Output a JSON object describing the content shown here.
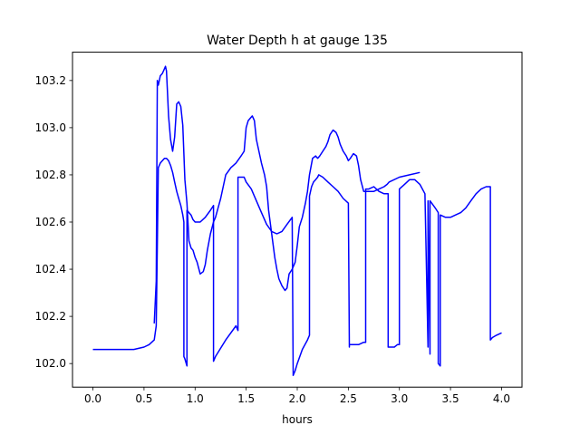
{
  "chart_data": {
    "type": "line",
    "title": "Water Depth h at gauge 135",
    "xlabel": "hours",
    "ylabel": "",
    "xlim": [
      -0.2,
      4.2
    ],
    "ylim": [
      101.9,
      103.32
    ],
    "xticks": [
      0.0,
      0.5,
      1.0,
      1.5,
      2.0,
      2.5,
      3.0,
      3.5,
      4.0
    ],
    "xtick_labels": [
      "0.0",
      "0.5",
      "1.0",
      "1.5",
      "2.0",
      "2.5",
      "3.0",
      "3.5",
      "4.0"
    ],
    "yticks": [
      102.0,
      102.2,
      102.4,
      102.6,
      102.8,
      103.0,
      103.2
    ],
    "ytick_labels": [
      "102.0",
      "102.2",
      "102.4",
      "102.6",
      "102.8",
      "103.0",
      "103.2"
    ],
    "grid": false,
    "legend": "none",
    "series": [
      {
        "color": "#0000ff",
        "x": [
          0.0,
          0.2,
          0.4,
          0.5,
          0.55,
          0.6,
          0.62,
          0.63,
          0.64,
          0.65,
          0.66,
          0.68,
          0.7,
          0.72,
          0.74,
          0.76,
          0.78,
          0.8,
          0.82,
          0.84,
          0.86,
          0.88,
          0.89,
          0.89,
          0.9,
          0.92,
          0.92,
          0.94,
          0.96,
          0.98,
          1.0,
          1.02,
          1.05,
          1.1,
          1.15,
          1.18,
          1.18,
          1.2,
          1.3,
          1.4,
          1.42,
          1.42,
          1.45,
          1.48,
          1.5,
          1.55,
          1.6,
          1.65,
          1.7,
          1.75,
          1.8,
          1.85,
          1.9,
          1.95,
          1.96,
          1.96,
          1.98,
          2.0,
          2.05,
          2.1,
          2.12,
          2.12,
          2.14,
          2.16,
          2.18,
          2.2,
          2.21,
          2.21,
          2.25,
          2.3,
          2.35,
          2.4,
          2.45,
          2.5,
          2.51,
          2.51,
          2.55,
          2.6,
          2.65,
          2.67,
          2.67,
          2.7,
          2.75,
          2.8,
          2.85,
          2.88,
          2.89,
          2.89,
          2.92,
          2.95,
          2.98,
          3.0,
          3.0,
          3.05,
          3.1,
          3.15,
          3.2,
          3.25,
          3.28,
          3.28,
          3.3,
          3.3,
          3.35,
          3.38,
          3.38,
          3.4,
          3.4,
          3.45,
          3.5,
          3.55,
          3.6,
          3.65,
          3.7,
          3.75,
          3.8,
          3.85,
          3.89,
          3.89,
          3.91,
          3.95,
          4.0
        ],
        "y": [
          102.06,
          102.06,
          102.06,
          102.07,
          102.08,
          102.1,
          102.16,
          102.5,
          102.83,
          102.84,
          102.85,
          102.86,
          102.87,
          102.87,
          102.86,
          102.84,
          102.81,
          102.77,
          102.73,
          102.7,
          102.67,
          102.63,
          102.6,
          102.03,
          102.02,
          101.99,
          102.65,
          102.64,
          102.63,
          102.61,
          102.6,
          102.6,
          102.6,
          102.62,
          102.65,
          102.67,
          102.01,
          102.03,
          102.1,
          102.16,
          102.14,
          102.79,
          102.79,
          102.79,
          102.77,
          102.74,
          102.69,
          102.64,
          102.59,
          102.56,
          102.55,
          102.56,
          102.59,
          102.62,
          101.96,
          101.95,
          101.97,
          102.0,
          102.06,
          102.1,
          102.12,
          102.71,
          102.75,
          102.77,
          102.78,
          102.79,
          102.8,
          102.8,
          102.79,
          102.77,
          102.75,
          102.73,
          102.7,
          102.68,
          102.07,
          102.08,
          102.08,
          102.08,
          102.09,
          102.09,
          102.74,
          102.74,
          102.75,
          102.73,
          102.72,
          102.72,
          102.72,
          102.07,
          102.07,
          102.07,
          102.08,
          102.08,
          102.74,
          102.76,
          102.78,
          102.78,
          102.76,
          102.72,
          102.07,
          102.69,
          102.04,
          102.69,
          102.66,
          102.64,
          102.0,
          101.99,
          102.63,
          102.62,
          102.62,
          102.63,
          102.64,
          102.66,
          102.69,
          102.72,
          102.74,
          102.75,
          102.75,
          102.1,
          102.11,
          102.12,
          102.13
        ]
      },
      {
        "color": "#0000ff",
        "x": [
          0.6,
          0.62,
          0.63,
          0.64,
          0.66,
          0.68,
          0.7,
          0.71,
          0.72,
          0.73,
          0.74,
          0.76,
          0.78,
          0.8,
          0.82,
          0.84,
          0.86,
          0.88,
          0.9,
          0.92,
          0.94,
          0.96,
          0.98,
          1.0,
          1.02,
          1.05,
          1.08,
          1.1,
          1.12,
          1.15,
          1.18,
          1.2,
          1.25,
          1.3,
          1.35,
          1.4,
          1.45,
          1.48,
          1.5,
          1.52,
          1.54,
          1.56,
          1.58,
          1.6,
          1.65,
          1.68,
          1.7,
          1.72,
          1.75,
          1.78,
          1.8,
          1.82,
          1.85,
          1.88,
          1.9,
          1.92,
          1.95,
          1.98,
          2.0,
          2.02,
          2.05,
          2.08,
          2.1,
          2.12,
          2.15,
          2.18,
          2.2,
          2.22,
          2.25,
          2.28,
          2.3,
          2.32,
          2.35,
          2.38,
          2.4,
          2.42,
          2.45,
          2.48,
          2.5,
          2.52,
          2.55,
          2.58,
          2.6,
          2.62,
          2.65,
          2.68,
          2.7,
          2.75,
          2.8,
          2.85,
          2.88,
          2.9,
          3.0,
          3.1,
          3.2
        ],
        "y": [
          102.17,
          102.35,
          103.2,
          103.18,
          103.22,
          103.23,
          103.25,
          103.26,
          103.24,
          103.15,
          103.05,
          102.95,
          102.9,
          102.96,
          103.1,
          103.11,
          103.09,
          103.01,
          102.78,
          102.68,
          102.52,
          102.49,
          102.48,
          102.45,
          102.43,
          102.38,
          102.39,
          102.42,
          102.48,
          102.55,
          102.6,
          102.62,
          102.7,
          102.8,
          102.83,
          102.85,
          102.88,
          102.9,
          103.0,
          103.03,
          103.04,
          103.05,
          103.03,
          102.95,
          102.85,
          102.8,
          102.75,
          102.65,
          102.55,
          102.45,
          102.4,
          102.36,
          102.33,
          102.31,
          102.32,
          102.38,
          102.4,
          102.43,
          102.5,
          102.58,
          102.62,
          102.68,
          102.73,
          102.8,
          102.87,
          102.88,
          102.87,
          102.88,
          102.9,
          102.92,
          102.94,
          102.97,
          102.99,
          102.98,
          102.96,
          102.93,
          102.9,
          102.88,
          102.86,
          102.87,
          102.89,
          102.88,
          102.84,
          102.78,
          102.73,
          102.73,
          102.73,
          102.73,
          102.74,
          102.75,
          102.76,
          102.77,
          102.79,
          102.8,
          102.81
        ]
      }
    ]
  }
}
